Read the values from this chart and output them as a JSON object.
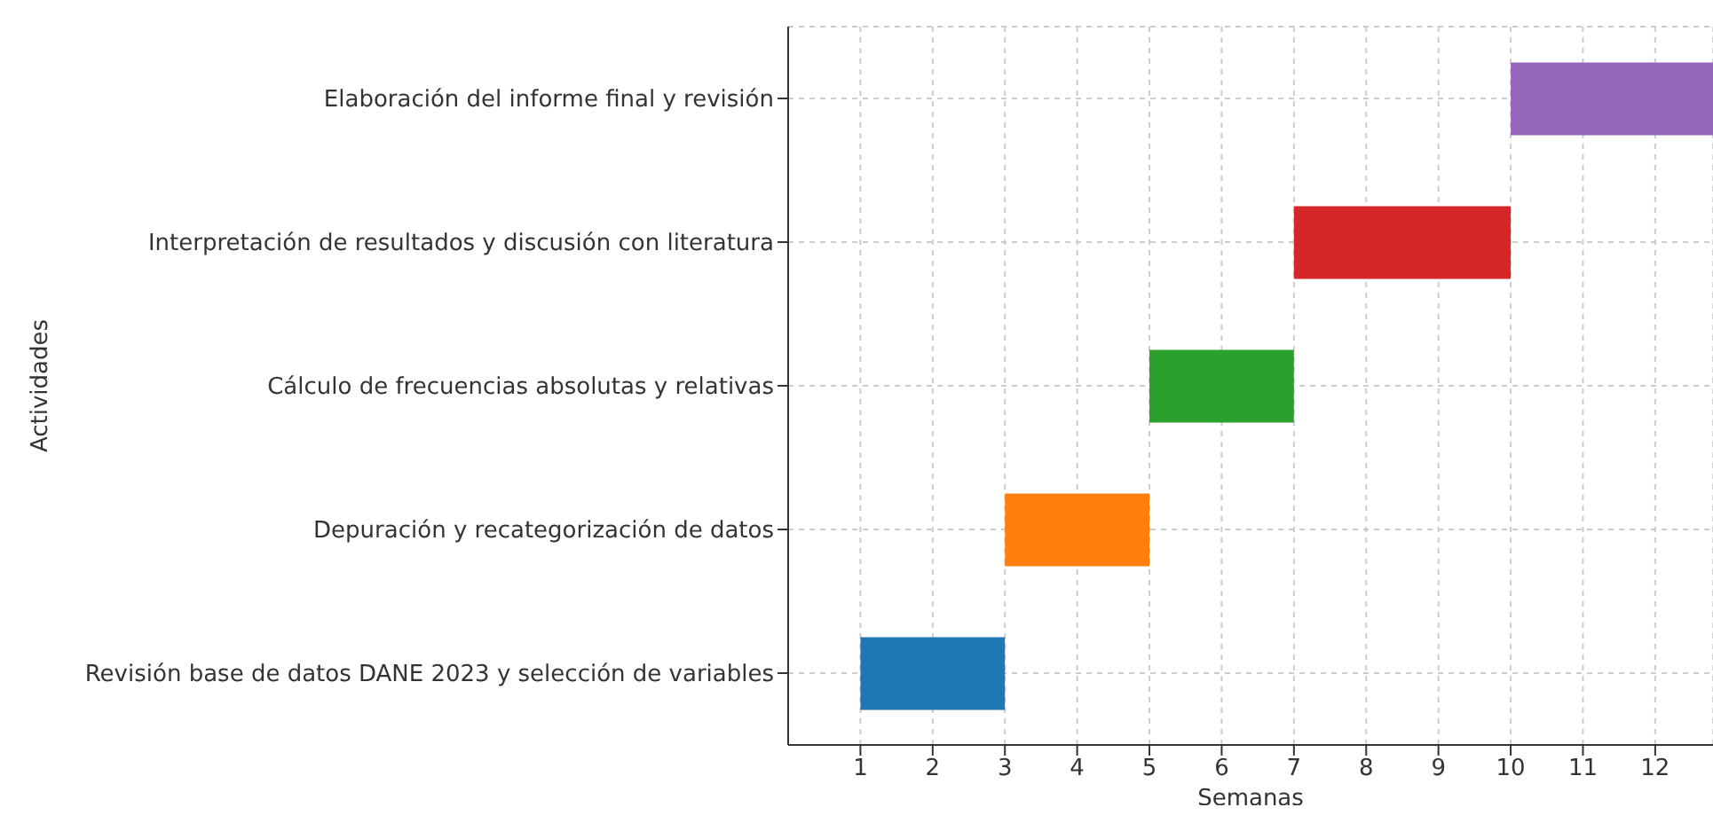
{
  "chart_data": {
    "type": "bar",
    "orientation": "horizontal",
    "xlabel": "Semanas",
    "ylabel": "Actividades",
    "categories": [
      "Elaboración del informe final y revisión",
      "Interpretación de resultados y discusión con literatura",
      "Cálculo de frecuencias absolutas y relativas",
      "Depuración y recategorización de datos",
      "Revisión base de datos DANE 2023 y selección de variables"
    ],
    "base": [
      10,
      7,
      5,
      3,
      1
    ],
    "values": [
      2.8,
      3,
      2,
      2,
      2
    ],
    "colors": [
      "#9467bd",
      "#d62728",
      "#2ca02c",
      "#ff7f0e",
      "#1f77b4"
    ],
    "xlim": [
      0,
      12.8
    ],
    "xticks": [
      1,
      2,
      3,
      4,
      5,
      6,
      7,
      8,
      9,
      10,
      11,
      12
    ],
    "grid": true,
    "legend": false
  }
}
